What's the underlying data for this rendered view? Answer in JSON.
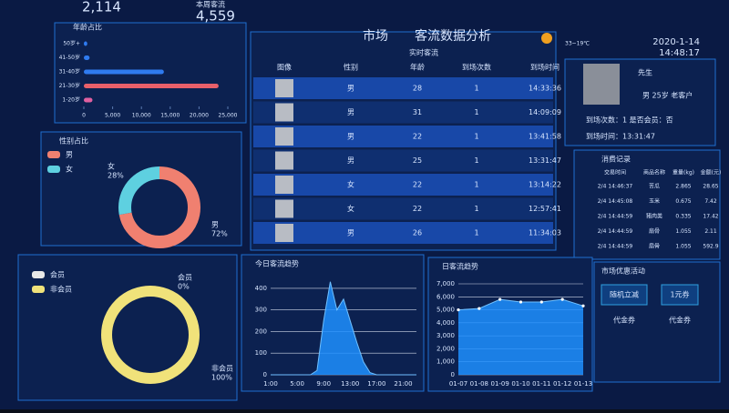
{
  "header": {
    "count_a": "2,114",
    "week_label": "本周客流",
    "week_count": "4,559",
    "title_a": "市场",
    "title_b": "客流数据分析",
    "weather": "33~19℃",
    "date": "2020-1-14",
    "time": "14:48:17"
  },
  "live_table": {
    "title": "实时客流",
    "headers": [
      "图像",
      "性别",
      "年龄",
      "到场次数",
      "到场时间"
    ],
    "rows": [
      [
        "男",
        28,
        1,
        "14:33:36"
      ],
      [
        "男",
        31,
        1,
        "14:09:09"
      ],
      [
        "男",
        22,
        1,
        "13:41:58"
      ],
      [
        "男",
        25,
        1,
        "13:31:47"
      ],
      [
        "女",
        22,
        1,
        "13:14:22"
      ],
      [
        "女",
        22,
        1,
        "12:57:41"
      ],
      [
        "男",
        26,
        1,
        "11:34:03"
      ]
    ]
  },
  "profile": {
    "name": "先生",
    "info": "男  25岁  老客户",
    "visits": "到场次数：1  是否会员：否",
    "time": "到场时间：13:31:47"
  },
  "records": {
    "title": "消费记录",
    "headers": [
      "交易时间",
      "商品名称",
      "重量(kg)",
      "金额(元)"
    ],
    "rows": [
      [
        "2/4 14:46:37",
        "苦瓜",
        2.865,
        28.65
      ],
      [
        "2/4 14:45:08",
        "玉米",
        0.675,
        7.42
      ],
      [
        "2/4 14:44:59",
        "猪肉类",
        0.335,
        17.42
      ],
      [
        "2/4 14:44:59",
        "扇骨",
        1.055,
        2.11
      ],
      [
        "2/4 14:44:59",
        "扇骨",
        1.055,
        592.9
      ]
    ]
  },
  "promo": {
    "title": "市场优惠活动",
    "buttons": [
      "随机立减",
      "1元券"
    ],
    "captions": [
      "代金券",
      "代金券"
    ]
  },
  "chart_data": [
    {
      "type": "hbar",
      "title": "年龄占比",
      "categories": [
        "50岁+",
        "41-50岁",
        "31-40岁",
        "21-30岁",
        "1-20岁"
      ],
      "values": [
        600,
        1000,
        13900,
        23400,
        1500
      ],
      "colors": [
        "#2f7bf0",
        "#2f7bf0",
        "#2f7bf0",
        "#e8606a",
        "#e060a0"
      ],
      "xlim": [
        0,
        25000
      ],
      "xticks": [
        0,
        {
          "value": 5000,
          "label": "5,000"
        },
        {
          "value": 10000,
          "label": "10,000"
        },
        {
          "value": 15000,
          "label": "15,000"
        },
        {
          "value": 20000,
          "label": "20,000"
        },
        {
          "value": 25000,
          "label": "25,000"
        }
      ]
    },
    {
      "type": "donut",
      "title": "性别占比",
      "categories": [
        "男",
        "女"
      ],
      "values": [
        72,
        28
      ],
      "value_labels": [
        "72%",
        "28%"
      ],
      "colors": [
        "#f08070",
        "#5ed0e0"
      ]
    },
    {
      "type": "donut",
      "categories": [
        "会员",
        "非会员"
      ],
      "values": [
        0,
        100
      ],
      "value_labels": [
        "0%",
        "100%"
      ],
      "colors": [
        "#e8e8e8",
        "#f0e27a"
      ]
    },
    {
      "type": "area",
      "title": "今日客流趋势",
      "categories": [
        "1:00",
        null,
        null,
        null,
        "5:00",
        null,
        null,
        null,
        "9:00",
        null,
        null,
        null,
        "13:00",
        null,
        null,
        null,
        "17:00",
        null,
        null,
        null,
        "21:00",
        null,
        null
      ],
      "values": [
        0,
        0,
        0,
        0,
        0,
        0,
        0,
        20,
        250,
        430,
        300,
        350,
        250,
        150,
        60,
        10,
        0,
        0,
        0,
        0,
        0,
        0,
        0
      ],
      "color": "#1e8fff",
      "ylim": [
        0,
        450
      ],
      "yticks": [
        0,
        100,
        200,
        300,
        400
      ]
    },
    {
      "type": "area",
      "title": "日客流趋势",
      "categories": [
        "01-07",
        "01-08",
        "01-09",
        "01-10",
        "01-11",
        "01-12",
        "01-13"
      ],
      "values": [
        5000,
        5100,
        5800,
        5600,
        5600,
        5800,
        5300
      ],
      "color": "#1e8fff",
      "ylim": [
        0,
        7000
      ],
      "yticks": [
        0,
        {
          "value": 1000,
          "label": "1,000"
        },
        {
          "value": 2000,
          "label": "2,000"
        },
        {
          "value": 3000,
          "label": "3,000"
        },
        {
          "value": 4000,
          "label": "4,000"
        },
        {
          "value": 5000,
          "label": "5,000"
        },
        {
          "value": 6000,
          "label": "6,000"
        },
        {
          "value": 7000,
          "label": "7,000"
        }
      ]
    }
  ]
}
